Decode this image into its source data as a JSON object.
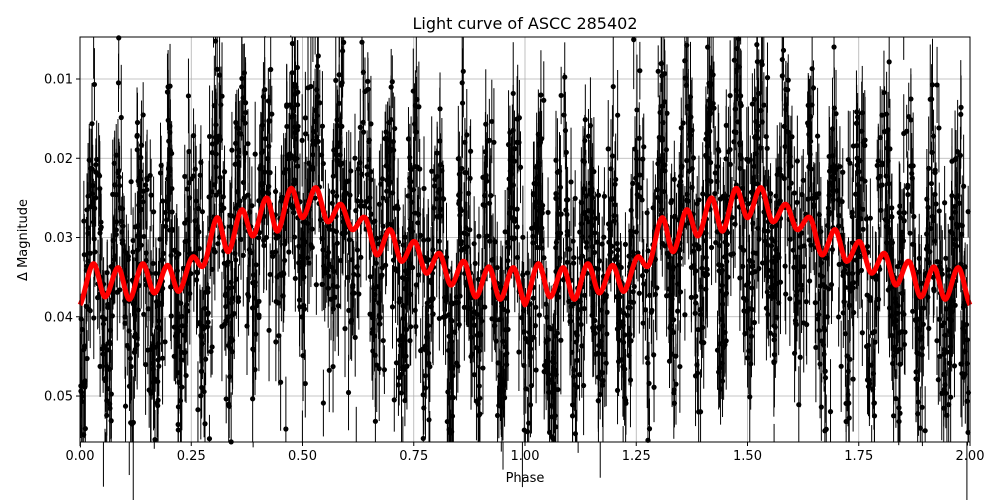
{
  "chart_data": {
    "type": "scatter",
    "title": "Light curve of ASCC 285402",
    "xlabel": "Phase",
    "ylabel": "Δ Magnitude",
    "xlim": [
      0,
      2
    ],
    "ylim": [
      0.0558,
      0.0047
    ],
    "y_inverted": true,
    "grid": true,
    "xticks": [
      "0.00",
      "0.25",
      "0.50",
      "0.75",
      "1.00",
      "1.25",
      "1.50",
      "1.75",
      "2.00"
    ],
    "yticks": [
      "0.01",
      "0.02",
      "0.03",
      "0.04",
      "0.05"
    ],
    "colors": {
      "data": "#000000",
      "model": "#ff0000",
      "grid": "#b0b0b0"
    },
    "series": [
      {
        "kind": "scatter-with-errorbars",
        "color": "#000000",
        "description_of_spread": [
          0.005,
          0.056
        ]
      },
      {
        "kind": "model-line",
        "color": "#ff0000",
        "period_in_phase": 1,
        "x": [
          0,
          0.03,
          0.056,
          0.086,
          0.111,
          0.141,
          0.167,
          0.197,
          0.222,
          0.252,
          0.278,
          0.308,
          0.333,
          0.363,
          0.389,
          0.419,
          0.444,
          0.474,
          0.5,
          0.53,
          0.556,
          0.586,
          0.611,
          0.641,
          0.667,
          0.697,
          0.722,
          0.752,
          0.778,
          0.808,
          0.833,
          0.863,
          0.889,
          0.919,
          0.944,
          0.974,
          1.0
        ],
        "y": [
          0.0385,
          0.0333,
          0.0375,
          0.0338,
          0.0378,
          0.0333,
          0.037,
          0.0335,
          0.0368,
          0.0325,
          0.0335,
          0.0275,
          0.0318,
          0.0265,
          0.0298,
          0.025,
          0.0292,
          0.0238,
          0.0275,
          0.0237,
          0.028,
          0.0258,
          0.029,
          0.0275,
          0.0322,
          0.029,
          0.033,
          0.0305,
          0.0345,
          0.032,
          0.036,
          0.033,
          0.0375,
          0.0337,
          0.0378,
          0.0338,
          0.0385
        ]
      }
    ]
  }
}
